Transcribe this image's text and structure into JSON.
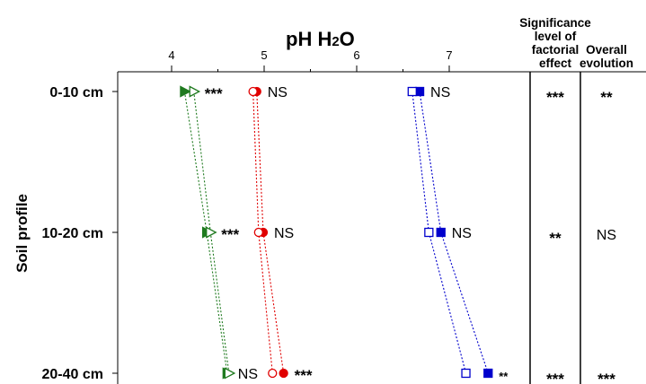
{
  "chart_data": {
    "type": "scatter",
    "title": "pH H2O",
    "title_main": "pH H",
    "title_sub": "2",
    "title_end": "O",
    "xlabel": "pH H2O",
    "ylabel": "Soil profile",
    "xticks": [
      4,
      5,
      6,
      7
    ],
    "xlim": [
      3.3,
      8.2
    ],
    "categories": [
      "0-10 cm",
      "10-20 cm",
      "20-40 cm"
    ],
    "grid": false,
    "series": [
      {
        "color": "#1f7a1f",
        "marker": "triangle-right",
        "filled": true,
        "line": "dotted",
        "values": [
          4.14,
          4.38,
          4.6
        ]
      },
      {
        "color": "#1f7a1f",
        "marker": "triangle-right",
        "filled": false,
        "line": "dotted",
        "values": [
          4.24,
          4.42,
          4.62
        ]
      },
      {
        "color": "#e00000",
        "marker": "circle",
        "filled": true,
        "line": "dotted",
        "values": [
          4.92,
          4.99,
          5.21
        ]
      },
      {
        "color": "#e00000",
        "marker": "circle",
        "filled": false,
        "line": "dotted",
        "values": [
          4.88,
          4.94,
          5.09
        ]
      },
      {
        "color": "#0000cc",
        "marker": "square",
        "filled": true,
        "line": "dotted",
        "values": [
          6.68,
          6.91,
          7.42
        ]
      },
      {
        "color": "#0000cc",
        "marker": "square",
        "filled": false,
        "line": "dotted",
        "values": [
          6.6,
          6.78,
          7.18
        ]
      }
    ],
    "annotations": [
      {
        "row": 0,
        "near": 4.24,
        "text": "***"
      },
      {
        "row": 0,
        "near": 4.92,
        "text": "NS"
      },
      {
        "row": 0,
        "near": 6.68,
        "text": "NS"
      },
      {
        "row": 1,
        "near": 4.42,
        "text": "***"
      },
      {
        "row": 1,
        "near": 4.99,
        "text": "NS"
      },
      {
        "row": 1,
        "near": 6.91,
        "text": "NS"
      },
      {
        "row": 2,
        "near": 4.6,
        "text": "NS"
      },
      {
        "row": 2,
        "near": 5.21,
        "text": "***"
      },
      {
        "row": 2,
        "near": 7.42,
        "text": "**"
      }
    ],
    "side_columns": [
      {
        "header": [
          "Significance",
          "level of",
          "factorial",
          "effect"
        ],
        "values": [
          "***",
          "**",
          "***"
        ]
      },
      {
        "header": [
          "Overall",
          "evolution"
        ],
        "values": [
          "**",
          "NS",
          "***"
        ]
      }
    ]
  }
}
